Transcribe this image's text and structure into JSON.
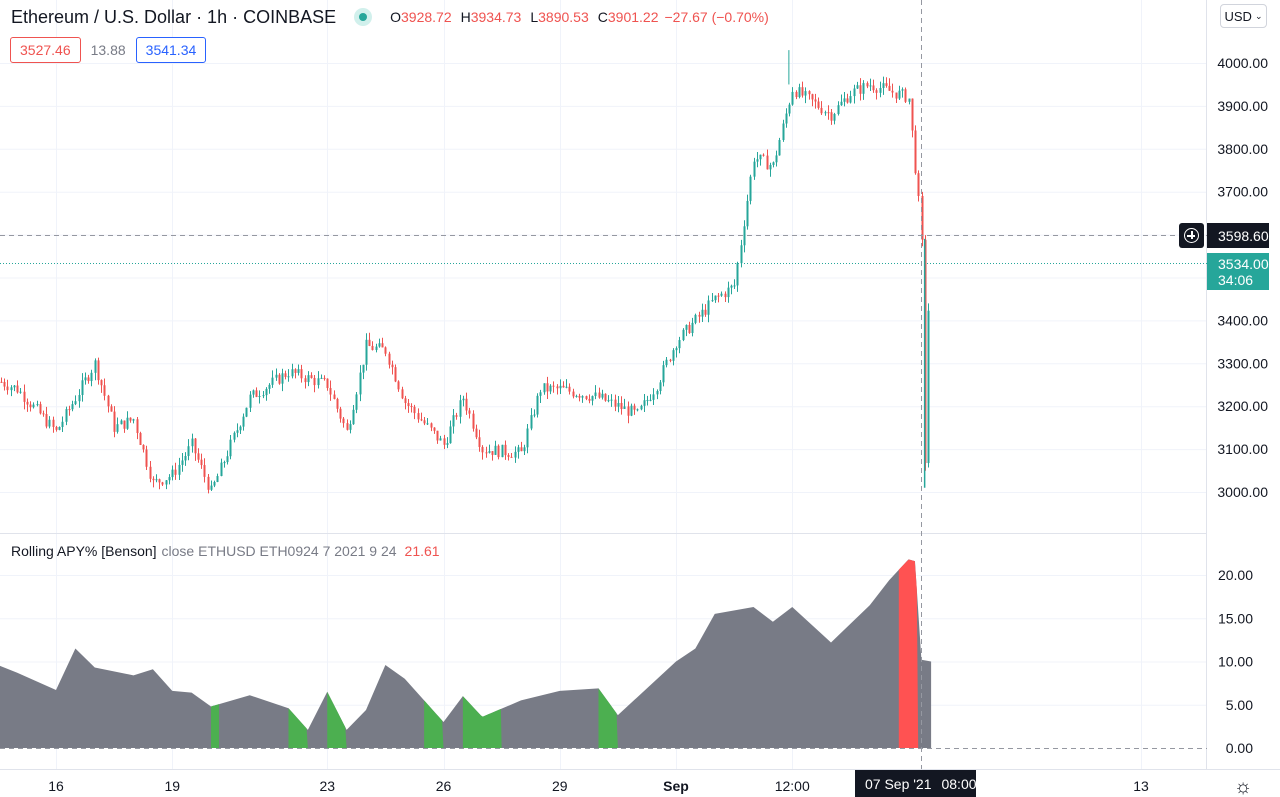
{
  "header": {
    "symbol_title": "Ethereum / U.S. Dollar · 1h · COINBASE",
    "ohlc": [
      {
        "key": "O",
        "value": "3928.72"
      },
      {
        "key": "H",
        "value": "3934.73"
      },
      {
        "key": "L",
        "value": "3890.53"
      },
      {
        "key": "C",
        "value": "3901.22"
      }
    ],
    "change": "−27.67 (−0.70%)",
    "live_indicator_color": "#26a69a"
  },
  "quote": {
    "bid": "3527.46",
    "spread": "13.88",
    "ask": "3541.34"
  },
  "currency_selector": {
    "value": "USD",
    "icon": "chevron-down-icon"
  },
  "indicator": {
    "name": "Rolling APY% [Benson]",
    "args": "close ETHUSD ETH0924 7 2021 9 24",
    "value": "21.61"
  },
  "price_scale": {
    "ticks": [
      "4000.00",
      "3900.00",
      "3800.00",
      "3700.00",
      "3400.00",
      "3300.00",
      "3200.00",
      "3100.00",
      "3000.00"
    ],
    "crosshair_price": "3598.60",
    "last_price": "3534.00",
    "countdown": "34:06"
  },
  "indicator_scale": {
    "ticks": [
      "20.00",
      "15.00",
      "10.00",
      "5.00",
      "0.00"
    ]
  },
  "time_axis": {
    "ticks": [
      "16",
      "19",
      "23",
      "26",
      "29",
      "Sep",
      "12:00",
      "13"
    ],
    "crosshair_date": "07 Sep '21",
    "crosshair_time": "08:00"
  },
  "colors": {
    "up": "#26a69a",
    "down": "#ef5350",
    "area": "#787b86",
    "green_zone": "#4caf50",
    "red_zone": "#ff5252"
  },
  "chart_data": [
    {
      "type": "candlestick",
      "title": "Ethereum / U.S. Dollar · 1h · COINBASE",
      "timeframe": "1h",
      "x_range": [
        "Aug 14 2021",
        "Sep 7 2021"
      ],
      "ylim": [
        2930,
        4070
      ],
      "close_path": [
        [
          "Aug 14",
          3280
        ],
        [
          "Aug 15",
          3240
        ],
        [
          "Aug 16",
          3140
        ],
        [
          "Aug 17",
          3300
        ],
        [
          "Aug 17 12:00",
          3150
        ],
        [
          "Aug 18",
          3170
        ],
        [
          "Aug 18 12:00",
          3020
        ],
        [
          "Aug 19",
          3040
        ],
        [
          "Aug 19 12:00",
          3110
        ],
        [
          "Aug 20",
          3000
        ],
        [
          "Aug 21",
          3220
        ],
        [
          "Aug 22",
          3280
        ],
        [
          "Aug 23",
          3250
        ],
        [
          "Aug 23 12:00",
          3140
        ],
        [
          "Aug 24",
          3340
        ],
        [
          "Aug 24 12:00",
          3330
        ],
        [
          "Aug 25",
          3210
        ],
        [
          "Aug 26",
          3110
        ],
        [
          "Aug 26 12:00",
          3220
        ],
        [
          "Aug 27",
          3100
        ],
        [
          "Aug 28",
          3090
        ],
        [
          "Aug 28 12:00",
          3240
        ],
        [
          "Aug 29",
          3240
        ],
        [
          "Aug 30",
          3220
        ],
        [
          "Aug 31",
          3180
        ],
        [
          "Aug 31 12:00",
          3250
        ],
        [
          "Sep 1",
          3350
        ],
        [
          "Sep 2",
          3450
        ],
        [
          "Sep 2 12:00",
          3480
        ],
        [
          "Sep 3",
          3780
        ],
        [
          "Sep 3 12:00",
          3760
        ],
        [
          "Sep 4",
          3940
        ],
        [
          "Sep 5",
          3880
        ],
        [
          "Sep 5 12:00",
          3930
        ],
        [
          "Sep 6",
          3950
        ],
        [
          "Sep 7",
          3920
        ],
        [
          "Sep 7 04:00",
          3760
        ],
        [
          "Sep 7 08:00",
          3598
        ],
        [
          "Sep 7 10:00",
          3060
        ],
        [
          "Sep 7 12:00",
          3420
        ],
        [
          "Sep 7 14:00",
          3534
        ]
      ],
      "extremes": {
        "high": 4030,
        "low": 3010
      }
    },
    {
      "type": "area",
      "title": "Rolling APY% [Benson]",
      "ylim": [
        0,
        22.5
      ],
      "values": [
        [
          "Aug 14",
          9.5
        ],
        [
          "Aug 15",
          8.7
        ],
        [
          "Aug 16",
          6.7
        ],
        [
          "Aug 16 12:00",
          11.5
        ],
        [
          "Aug 17",
          9.3
        ],
        [
          "Aug 18",
          8.4
        ],
        [
          "Aug 18 12:00",
          9.1
        ],
        [
          "Aug 19",
          6.6
        ],
        [
          "Aug 19 12:00",
          6.4
        ],
        [
          "Aug 20",
          4.8
        ],
        [
          "Aug 21",
          6.1
        ],
        [
          "Aug 22",
          4.6
        ],
        [
          "Aug 22 12:00",
          2.1
        ],
        [
          "Aug 23",
          6.5
        ],
        [
          "Aug 23 12:00",
          2.1
        ],
        [
          "Aug 24",
          4.4
        ],
        [
          "Aug 24 12:00",
          9.6
        ],
        [
          "Aug 25",
          8.0
        ],
        [
          "Aug 26",
          3.0
        ],
        [
          "Aug 26 12:00",
          6.0
        ],
        [
          "Aug 27",
          3.6
        ],
        [
          "Aug 28",
          5.5
        ],
        [
          "Aug 29",
          6.6
        ],
        [
          "Aug 30",
          6.9
        ],
        [
          "Aug 30 12:00",
          3.8
        ],
        [
          "Sep 1",
          10.0
        ],
        [
          "Sep 1 12:00",
          11.5
        ],
        [
          "Sep 2",
          15.5
        ],
        [
          "Sep 3",
          16.3
        ],
        [
          "Sep 3 12:00",
          14.6
        ],
        [
          "Sep 4",
          16.3
        ],
        [
          "Sep 5",
          12.2
        ],
        [
          "Sep 6",
          16.5
        ],
        [
          "Sep 6 12:00",
          19.4
        ],
        [
          "Sep 7",
          21.8
        ],
        [
          "Sep 7 04:00",
          21.6
        ],
        [
          "Sep 7 08:00",
          10.2
        ],
        [
          "Sep 7 14:00",
          10.0
        ]
      ],
      "green_periods": [
        [
          "Aug 20",
          "Aug 20"
        ],
        [
          "Aug 22",
          "Aug 22 12:00"
        ],
        [
          "Aug 23",
          "Aug 23 12:00"
        ],
        [
          "Aug 25 12:00",
          "Aug 26"
        ],
        [
          "Aug 26 12:00",
          "Aug 27 12:00"
        ],
        [
          "Aug 30",
          "Aug 30 12:00"
        ]
      ],
      "red_periods": [
        [
          "Sep 6 18:00",
          "Sep 7 06:00"
        ]
      ]
    }
  ]
}
